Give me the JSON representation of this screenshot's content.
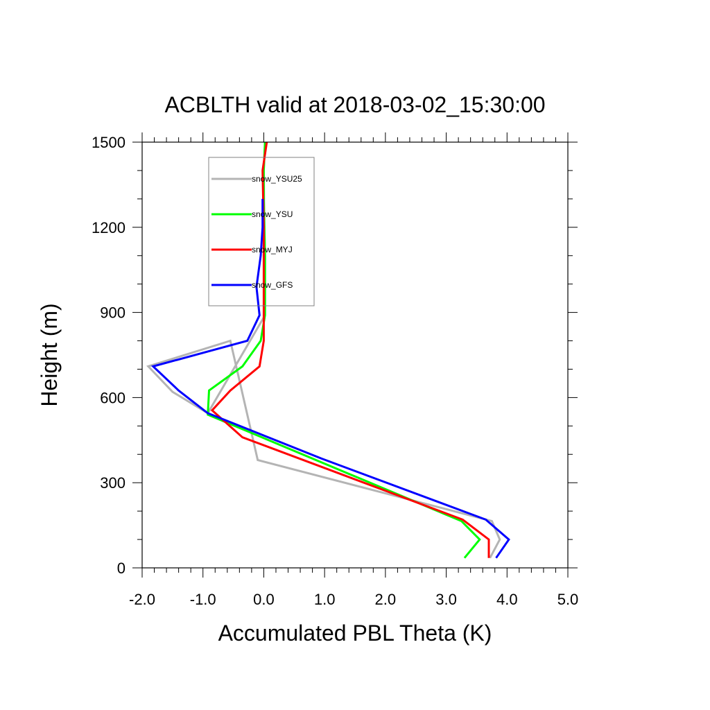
{
  "chart_data": {
    "type": "line",
    "title": "ACBLTH valid at 2018-03-02_15:30:00",
    "xlabel": "Accumulated PBL Theta (K)",
    "ylabel": "Height (m)",
    "xlim": [
      -2.0,
      5.0
    ],
    "ylim": [
      0,
      1500
    ],
    "xticks": [
      -2.0,
      -1.0,
      0.0,
      1.0,
      2.0,
      3.0,
      4.0,
      5.0
    ],
    "xtick_labels": [
      "-2.0",
      "-1.0",
      "0.0",
      "1.0",
      "2.0",
      "3.0",
      "4.0",
      "5.0"
    ],
    "yticks": [
      0,
      300,
      600,
      900,
      1200,
      1500
    ],
    "ytick_labels": [
      "0",
      "300",
      "600",
      "900",
      "1200",
      "1500"
    ],
    "grid": false,
    "legend": "top-left, inside plot",
    "series": [
      {
        "name": "snow_YSU25",
        "color": "#b4b4b4",
        "x": [
          3.72,
          3.88,
          3.75,
          -0.1,
          -0.55,
          -1.9,
          -1.5,
          -0.92,
          0.02,
          0.02,
          0.01,
          0.0,
          0.02
        ],
        "y": [
          35,
          100,
          165,
          380,
          800,
          710,
          620,
          545,
          890,
          1100,
          1200,
          1400,
          1500
        ]
      },
      {
        "name": "snow_YSU",
        "color": "#00ff00",
        "x": [
          3.3,
          3.55,
          3.25,
          -0.92,
          -0.9,
          -0.35,
          -0.05,
          0.02,
          0.02,
          0.0,
          0.0,
          0.02
        ],
        "y": [
          35,
          100,
          165,
          540,
          625,
          710,
          800,
          890,
          1100,
          1300,
          1400,
          1500
        ]
      },
      {
        "name": "snow_MYJ",
        "color": "#ff0000",
        "x": [
          3.7,
          3.7,
          3.27,
          -0.35,
          -0.85,
          -0.55,
          -0.07,
          0.0,
          0.0,
          0.0,
          -0.02,
          0.05
        ],
        "y": [
          35,
          100,
          170,
          460,
          555,
          625,
          710,
          800,
          890,
          1200,
          1400,
          1500
        ]
      },
      {
        "name": "snow_GFS",
        "color": "#0000ff",
        "x": [
          3.82,
          4.03,
          3.65,
          0.95,
          -0.92,
          -1.4,
          -1.82,
          -0.27,
          -0.07,
          -0.12,
          -0.05,
          -0.02,
          -0.02
        ],
        "y": [
          35,
          100,
          170,
          385,
          545,
          625,
          710,
          800,
          890,
          990,
          1100,
          1200,
          1300
        ]
      }
    ]
  }
}
